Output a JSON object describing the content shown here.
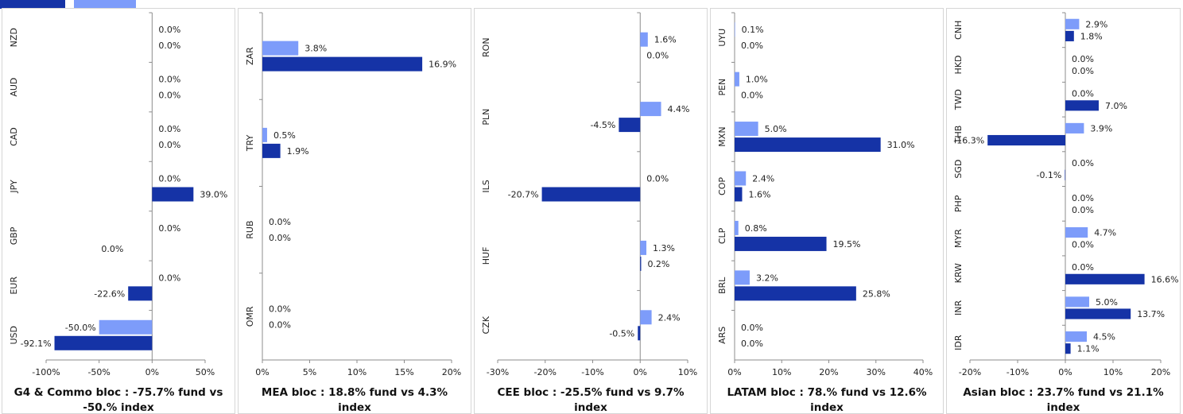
{
  "legend": {
    "fund_color": "#1533a6",
    "index_color": "#7d9cfa"
  },
  "chart_data": [
    {
      "type": "bar",
      "orientation": "horizontal",
      "title": "G4 & Commo bloc : -75.7% fund vs -50.% index",
      "categories": [
        "USD",
        "EUR",
        "GBP",
        "JPY",
        "CAD",
        "AUD",
        "NZD"
      ],
      "series": [
        {
          "color": "#7d9cfa",
          "values": [
            -50.0,
            0.0,
            0.0,
            0.0,
            0.0,
            0.0,
            0.0
          ],
          "labels": [
            "-50.0%",
            "0.0%",
            "0.0%",
            "0.0%",
            "0.0%",
            "0.0%",
            "0.0%"
          ]
        },
        {
          "color": "#1533a6",
          "values": [
            -92.1,
            -22.6,
            null,
            39.0,
            0.0,
            0.0,
            0.0
          ],
          "labels": [
            "-92.1%",
            "-22.6%",
            "",
            "39.0%",
            "0.0%",
            "0.0%",
            "0.0%"
          ]
        }
      ],
      "extra_labels": [
        {
          "category": "GBP",
          "text": "0.0%"
        }
      ],
      "xlim": [
        -100,
        50
      ],
      "xticks": [
        -100,
        -50,
        0,
        50
      ],
      "xtick_labels": [
        "-100%",
        "-50%",
        "0%",
        "50%"
      ]
    },
    {
      "type": "bar",
      "orientation": "horizontal",
      "title": "MEA bloc : 18.8% fund vs 4.3% index",
      "categories": [
        "OMR",
        "RUB",
        "TRY",
        "ZAR"
      ],
      "series": [
        {
          "color": "#7d9cfa",
          "values": [
            0.0,
            0.0,
            0.5,
            3.8
          ],
          "labels": [
            "0.0%",
            "0.0%",
            "0.5%",
            "3.8%"
          ]
        },
        {
          "color": "#1533a6",
          "values": [
            0.0,
            0.0,
            1.9,
            16.9
          ],
          "labels": [
            "0.0%",
            "0.0%",
            "1.9%",
            "16.9%"
          ]
        }
      ],
      "xlim": [
        0,
        20
      ],
      "xticks": [
        0,
        5,
        10,
        15,
        20
      ],
      "xtick_labels": [
        "0%",
        "5%",
        "10%",
        "15%",
        "20%"
      ]
    },
    {
      "type": "bar",
      "orientation": "horizontal",
      "title": "CEE bloc : -25.5% fund vs 9.7% index",
      "categories": [
        "CZK",
        "HUF",
        "ILS",
        "PLN",
        "RON"
      ],
      "series": [
        {
          "color": "#7d9cfa",
          "values": [
            2.4,
            1.3,
            0.0,
            4.4,
            1.6
          ],
          "labels": [
            "2.4%",
            "1.3%",
            "0.0%",
            "4.4%",
            "1.6%"
          ]
        },
        {
          "color": "#1533a6",
          "values": [
            -0.5,
            0.2,
            -20.7,
            -4.5,
            0.0
          ],
          "labels": [
            "-0.5%",
            "0.2%",
            "-20.7%",
            "-4.5%",
            "0.0%"
          ]
        }
      ],
      "xlim": [
        -30,
        10
      ],
      "xticks": [
        -30,
        -20,
        -10,
        0,
        10
      ],
      "xtick_labels": [
        "-30%",
        "-20%",
        "-10%",
        "0%",
        "10%"
      ]
    },
    {
      "type": "bar",
      "orientation": "horizontal",
      "title": "LATAM bloc : 78.% fund vs 12.6% index",
      "categories": [
        "ARS",
        "BRL",
        "CLP",
        "COP",
        "MXN",
        "PEN",
        "UYU"
      ],
      "series": [
        {
          "color": "#7d9cfa",
          "values": [
            0.0,
            3.2,
            0.8,
            2.4,
            5.0,
            1.0,
            0.1
          ],
          "labels": [
            "0.0%",
            "3.2%",
            "0.8%",
            "2.4%",
            "5.0%",
            "1.0%",
            "0.1%"
          ]
        },
        {
          "color": "#1533a6",
          "values": [
            0.0,
            25.8,
            19.5,
            1.6,
            31.0,
            0.0,
            0.0
          ],
          "labels": [
            "0.0%",
            "25.8%",
            "19.5%",
            "1.6%",
            "31.0%",
            "0.0%",
            "0.0%"
          ]
        }
      ],
      "xlim": [
        0,
        40
      ],
      "xticks": [
        0,
        10,
        20,
        30,
        40
      ],
      "xtick_labels": [
        "0%",
        "10%",
        "20%",
        "30%",
        "40%"
      ]
    },
    {
      "type": "bar",
      "orientation": "horizontal",
      "title": "Asian bloc : 23.7% fund vs 21.1% index",
      "categories": [
        "IDR",
        "INR",
        "KRW",
        "MYR",
        "PHP",
        "SGD",
        "THB",
        "TWD",
        "HKD",
        "CNH"
      ],
      "series": [
        {
          "color": "#7d9cfa",
          "values": [
            4.5,
            5.0,
            0.0,
            4.7,
            0.0,
            0.0,
            3.9,
            0.0,
            0.0,
            2.9
          ],
          "labels": [
            "4.5%",
            "5.0%",
            "0.0%",
            "4.7%",
            "0.0%",
            "0.0%",
            "3.9%",
            "0.0%",
            "0.0%",
            "2.9%"
          ]
        },
        {
          "color": "#1533a6",
          "values": [
            1.1,
            13.7,
            16.6,
            0.0,
            0.0,
            -0.1,
            -16.3,
            7.0,
            0.0,
            1.8
          ],
          "labels": [
            "1.1%",
            "13.7%",
            "16.6%",
            "0.0%",
            "0.0%",
            "-0.1%",
            "-16.3%",
            "7.0%",
            "0.0%",
            "1.8%"
          ]
        }
      ],
      "xlim": [
        -20,
        20
      ],
      "xticks": [
        -20,
        -10,
        0,
        10,
        20
      ],
      "xtick_labels": [
        "-20%",
        "-10%",
        "0%",
        "10%",
        "20%"
      ]
    }
  ]
}
